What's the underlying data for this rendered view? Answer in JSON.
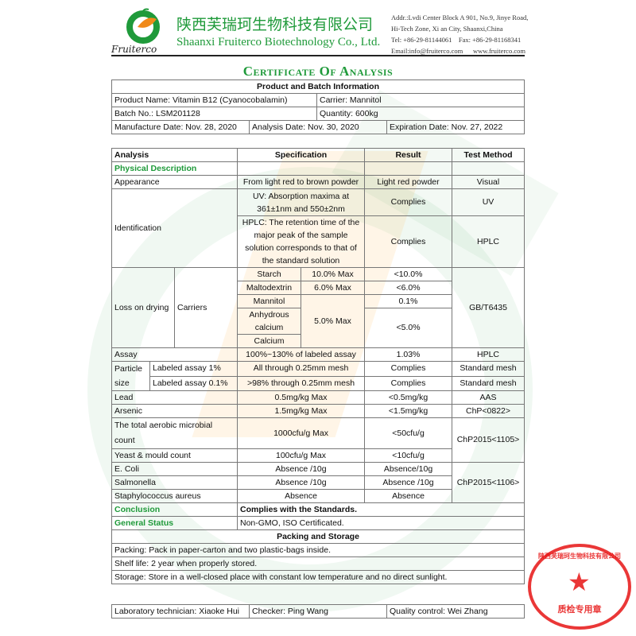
{
  "header": {
    "logo_text": "Fruiterco",
    "company_cn": "陕西芙瑞珂生物科技有限公司",
    "company_en": "Shaanxi Fruiterco Biotechnology Co., Ltd.",
    "address": "Addr.:Lvdi Center Block A 901, No.9, Jinye Road,\nHi-Tech Zone, Xi an City, Shaanxi,China\nTel: +86-29-81144061    Fax: +86-29-81168341\nEmail:info@fruiterco.com      www.fruiterco.com"
  },
  "title": "Certificate Of Analysis",
  "product": {
    "heading": "Product and Batch Information",
    "product_name": "Product Name: Vitamin B12 (Cyanocobalamin)",
    "carrier": "Carrier: Mannitol",
    "batch": "Batch No.: LSM201128",
    "quantity": "Quantity: 600kg",
    "manufacture": "Manufacture Date: Nov. 28, 2020",
    "analysis": "Analysis Date: Nov. 30, 2020",
    "expiration": "Expiration Date: Nov. 27, 2022"
  },
  "analysis": {
    "headers": [
      "Analysis",
      "Specification",
      "Result",
      "Test Method"
    ],
    "physical": "Physical Description",
    "appearance": [
      "Appearance",
      "From light red to brown powder",
      "Light red powder",
      "Visual"
    ],
    "identification": {
      "label": "Identification",
      "uv": [
        "UV: Absorption maxima at 361±1nm and 550±2nm",
        "Complies",
        "UV"
      ],
      "hplc": [
        "HPLC: The retention time of the major peak of the sample solution corresponds to that of the standard solution",
        "Complies",
        "HPLC"
      ]
    },
    "lod": {
      "label": "Loss on drying",
      "carriers": "Carriers",
      "method": "GB/T6435",
      "starch": [
        "Starch",
        "10.0% Max",
        "<10.0%"
      ],
      "malto": [
        "Maltodextrin",
        "6.0% Max",
        "<6.0%"
      ],
      "mannitol": [
        "Mannitol",
        "5.0% Max",
        "0.1%"
      ],
      "anhydrous": "Anhydrous calcium",
      "calcium": "Calcium",
      "result_ca": "<5.0%"
    },
    "assay": [
      "Assay",
      "100%~130% of labeled assay",
      "1.03%",
      "HPLC"
    ],
    "particle": {
      "label": "Particle size",
      "r1": [
        "Labeled assay 1%",
        "All through 0.25mm mesh",
        "Complies",
        "Standard mesh"
      ],
      "r2": [
        "Labeled assay 0.1%",
        ">98% through 0.25mm mesh",
        "Complies",
        "Standard mesh"
      ]
    },
    "lead": [
      "Lead",
      "0.5mg/kg Max",
      "<0.5mg/kg",
      "AAS"
    ],
    "arsenic": [
      "Arsenic",
      "1.5mg/kg Max",
      "<1.5mg/kg",
      "ChP<0822>"
    ],
    "aerobic": [
      "The total aerobic microbial count",
      "1000cfu/g Max",
      "<50cfu/g",
      "ChP2015<1105>"
    ],
    "yeast": [
      "Yeast & mould count",
      "100cfu/g Max",
      "<10cfu/g"
    ],
    "ecoli": [
      "E. Coli",
      "Absence /10g",
      "Absence/10g",
      "ChP2015<1106>"
    ],
    "salmonella": [
      "Salmonella",
      "Absence /10g",
      "Absence /10g"
    ],
    "staph": [
      "Staphylococcus aureus",
      "Absence",
      "Absence"
    ],
    "conclusion": [
      "Conclusion",
      "Complies with the Standards."
    ],
    "general": [
      "General Status",
      "Non-GMO, ISO Certificated."
    ]
  },
  "packing": {
    "heading": "Packing and Storage",
    "packing": "Packing: Pack in paper-carton and two plastic-bags inside.",
    "shelf": "Shelf life: 2 year when properly stored.",
    "storage": "Storage: Store in a well-closed place with constant low temperature and no direct sunlight."
  },
  "signatures": {
    "technician": "Laboratory technician: Xiaoke Hui",
    "checker": "Checker: Ping Wang",
    "qc": "Quality control: Wei Zhang"
  },
  "stamp": {
    "ring": "陕西芙瑞珂生物科技有限公司",
    "center": "质检专用章",
    "color": "#e61414"
  },
  "colors": {
    "brand_green": "#1f9a3a"
  }
}
